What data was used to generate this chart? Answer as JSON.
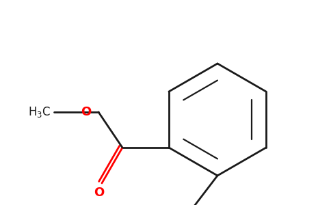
{
  "background_color": "#ffffff",
  "bond_color": "#1a1a1a",
  "oxygen_color": "#ff0000",
  "nitrogen_color": "#0000cc",
  "figsize": [
    4.84,
    3.0
  ],
  "dpi": 100,
  "lw": 2.0,
  "lw_inner": 1.6
}
